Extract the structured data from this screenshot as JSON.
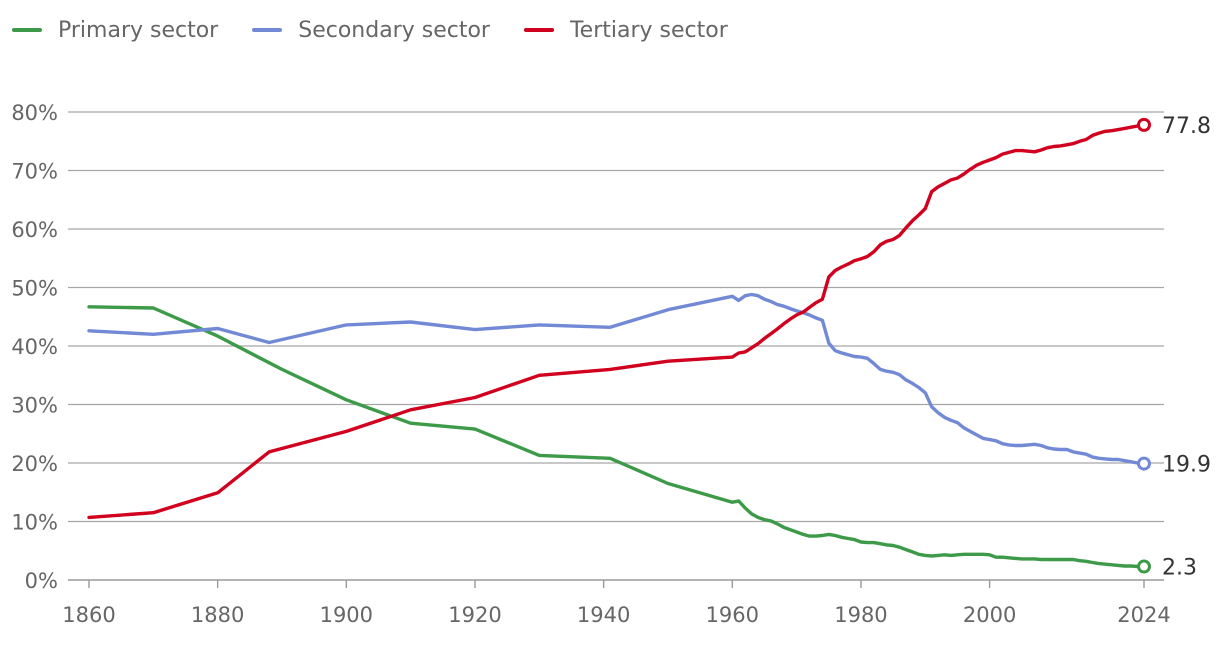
{
  "chart_data": {
    "type": "line",
    "title": "",
    "xlabel": "",
    "ylabel": "",
    "xlim": [
      1860,
      2024
    ],
    "ylim": [
      0,
      80
    ],
    "y_ticks": [
      {
        "value": 0,
        "label": "0%"
      },
      {
        "value": 10,
        "label": "10%"
      },
      {
        "value": 20,
        "label": "20%"
      },
      {
        "value": 30,
        "label": "30%"
      },
      {
        "value": 40,
        "label": "40%"
      },
      {
        "value": 50,
        "label": "50%"
      },
      {
        "value": 60,
        "label": "60%"
      },
      {
        "value": 70,
        "label": "70%"
      },
      {
        "value": 80,
        "label": "80%"
      }
    ],
    "x_ticks": [
      {
        "value": 1860,
        "label": "1860"
      },
      {
        "value": 1880,
        "label": "1880"
      },
      {
        "value": 1900,
        "label": "1900"
      },
      {
        "value": 1920,
        "label": "1920"
      },
      {
        "value": 1940,
        "label": "1940"
      },
      {
        "value": 1960,
        "label": "1960"
      },
      {
        "value": 1980,
        "label": "1980"
      },
      {
        "value": 2000,
        "label": "2000"
      },
      {
        "value": 2024,
        "label": "2024"
      }
    ],
    "legend_position": "top-left",
    "series": [
      {
        "key": "primary",
        "name": "Primary sector",
        "color": "#3d9a48",
        "end_label": "2.3",
        "points": [
          [
            1860,
            46.7
          ],
          [
            1870,
            46.5
          ],
          [
            1880,
            41.7
          ],
          [
            1890,
            36.0
          ],
          [
            1900,
            30.8
          ],
          [
            1910,
            26.8
          ],
          [
            1920,
            25.8
          ],
          [
            1930,
            21.3
          ],
          [
            1941,
            20.8
          ],
          [
            1950,
            16.5
          ],
          [
            1960,
            13.3
          ],
          [
            1961,
            13.5
          ],
          [
            1962,
            12.3
          ],
          [
            1963,
            11.3
          ],
          [
            1964,
            10.7
          ],
          [
            1965,
            10.3
          ],
          [
            1966,
            10.1
          ],
          [
            1967,
            9.6
          ],
          [
            1968,
            9.0
          ],
          [
            1969,
            8.6
          ],
          [
            1970,
            8.2
          ],
          [
            1971,
            7.8
          ],
          [
            1972,
            7.5
          ],
          [
            1973,
            7.5
          ],
          [
            1974,
            7.6
          ],
          [
            1975,
            7.8
          ],
          [
            1976,
            7.6
          ],
          [
            1977,
            7.3
          ],
          [
            1978,
            7.1
          ],
          [
            1979,
            6.9
          ],
          [
            1980,
            6.5
          ],
          [
            1981,
            6.4
          ],
          [
            1982,
            6.4
          ],
          [
            1983,
            6.2
          ],
          [
            1984,
            6.0
          ],
          [
            1985,
            5.9
          ],
          [
            1986,
            5.6
          ],
          [
            1987,
            5.2
          ],
          [
            1988,
            4.8
          ],
          [
            1989,
            4.4
          ],
          [
            1990,
            4.2
          ],
          [
            1991,
            4.1
          ],
          [
            1992,
            4.2
          ],
          [
            1993,
            4.3
          ],
          [
            1994,
            4.2
          ],
          [
            1995,
            4.3
          ],
          [
            1996,
            4.4
          ],
          [
            1997,
            4.4
          ],
          [
            1998,
            4.4
          ],
          [
            1999,
            4.4
          ],
          [
            2000,
            4.3
          ],
          [
            2001,
            3.9
          ],
          [
            2002,
            3.9
          ],
          [
            2003,
            3.8
          ],
          [
            2004,
            3.7
          ],
          [
            2005,
            3.6
          ],
          [
            2006,
            3.6
          ],
          [
            2007,
            3.6
          ],
          [
            2008,
            3.5
          ],
          [
            2009,
            3.5
          ],
          [
            2010,
            3.5
          ],
          [
            2011,
            3.5
          ],
          [
            2012,
            3.5
          ],
          [
            2013,
            3.5
          ],
          [
            2014,
            3.3
          ],
          [
            2015,
            3.2
          ],
          [
            2016,
            3.0
          ],
          [
            2017,
            2.8
          ],
          [
            2018,
            2.7
          ],
          [
            2019,
            2.6
          ],
          [
            2020,
            2.5
          ],
          [
            2021,
            2.4
          ],
          [
            2022,
            2.4
          ],
          [
            2023,
            2.3
          ],
          [
            2024,
            2.3
          ]
        ]
      },
      {
        "key": "secondary",
        "name": "Secondary sector",
        "color": "#7289d6",
        "end_label": "19.9",
        "points": [
          [
            1860,
            42.6
          ],
          [
            1870,
            42.0
          ],
          [
            1880,
            43.0
          ],
          [
            1888,
            40.6
          ],
          [
            1900,
            43.6
          ],
          [
            1910,
            44.1
          ],
          [
            1920,
            42.8
          ],
          [
            1930,
            43.6
          ],
          [
            1941,
            43.2
          ],
          [
            1950,
            46.2
          ],
          [
            1960,
            48.5
          ],
          [
            1961,
            47.8
          ],
          [
            1962,
            48.6
          ],
          [
            1963,
            48.8
          ],
          [
            1964,
            48.6
          ],
          [
            1965,
            48.0
          ],
          [
            1966,
            47.6
          ],
          [
            1967,
            47.1
          ],
          [
            1968,
            46.8
          ],
          [
            1969,
            46.4
          ],
          [
            1970,
            46.0
          ],
          [
            1971,
            45.7
          ],
          [
            1972,
            45.3
          ],
          [
            1973,
            44.8
          ],
          [
            1974,
            44.4
          ],
          [
            1975,
            40.5
          ],
          [
            1976,
            39.2
          ],
          [
            1977,
            38.8
          ],
          [
            1978,
            38.5
          ],
          [
            1979,
            38.2
          ],
          [
            1980,
            38.1
          ],
          [
            1981,
            37.9
          ],
          [
            1982,
            37.0
          ],
          [
            1983,
            36.0
          ],
          [
            1984,
            35.7
          ],
          [
            1985,
            35.5
          ],
          [
            1986,
            35.1
          ],
          [
            1987,
            34.2
          ],
          [
            1988,
            33.6
          ],
          [
            1989,
            32.9
          ],
          [
            1990,
            32.0
          ],
          [
            1991,
            29.6
          ],
          [
            1992,
            28.6
          ],
          [
            1993,
            27.8
          ],
          [
            1994,
            27.3
          ],
          [
            1995,
            26.9
          ],
          [
            1996,
            26.0
          ],
          [
            1997,
            25.4
          ],
          [
            1998,
            24.8
          ],
          [
            1999,
            24.2
          ],
          [
            2000,
            24.0
          ],
          [
            2001,
            23.8
          ],
          [
            2002,
            23.3
          ],
          [
            2003,
            23.1
          ],
          [
            2004,
            23.0
          ],
          [
            2005,
            23.0
          ],
          [
            2006,
            23.1
          ],
          [
            2007,
            23.2
          ],
          [
            2008,
            23.0
          ],
          [
            2009,
            22.6
          ],
          [
            2010,
            22.4
          ],
          [
            2011,
            22.3
          ],
          [
            2012,
            22.3
          ],
          [
            2013,
            21.9
          ],
          [
            2014,
            21.7
          ],
          [
            2015,
            21.5
          ],
          [
            2016,
            21.0
          ],
          [
            2017,
            20.8
          ],
          [
            2018,
            20.7
          ],
          [
            2019,
            20.6
          ],
          [
            2020,
            20.6
          ],
          [
            2021,
            20.4
          ],
          [
            2022,
            20.2
          ],
          [
            2023,
            20.0
          ],
          [
            2024,
            19.9
          ]
        ]
      },
      {
        "key": "tertiary",
        "name": "Tertiary sector",
        "color": "#d1001f",
        "end_label": "77.8",
        "points": [
          [
            1860,
            10.7
          ],
          [
            1870,
            11.5
          ],
          [
            1880,
            14.9
          ],
          [
            1888,
            21.9
          ],
          [
            1900,
            25.4
          ],
          [
            1910,
            29.1
          ],
          [
            1920,
            31.2
          ],
          [
            1930,
            35.0
          ],
          [
            1941,
            36.0
          ],
          [
            1950,
            37.4
          ],
          [
            1960,
            38.1
          ],
          [
            1961,
            38.8
          ],
          [
            1962,
            39.0
          ],
          [
            1963,
            39.7
          ],
          [
            1964,
            40.4
          ],
          [
            1965,
            41.3
          ],
          [
            1966,
            42.1
          ],
          [
            1967,
            42.9
          ],
          [
            1968,
            43.8
          ],
          [
            1969,
            44.6
          ],
          [
            1970,
            45.3
          ],
          [
            1971,
            45.8
          ],
          [
            1972,
            46.6
          ],
          [
            1973,
            47.4
          ],
          [
            1974,
            48.0
          ],
          [
            1975,
            51.8
          ],
          [
            1976,
            52.9
          ],
          [
            1977,
            53.5
          ],
          [
            1978,
            54.0
          ],
          [
            1979,
            54.6
          ],
          [
            1980,
            54.9
          ],
          [
            1981,
            55.3
          ],
          [
            1982,
            56.1
          ],
          [
            1983,
            57.3
          ],
          [
            1984,
            57.9
          ],
          [
            1985,
            58.2
          ],
          [
            1986,
            58.9
          ],
          [
            1987,
            60.2
          ],
          [
            1988,
            61.4
          ],
          [
            1989,
            62.4
          ],
          [
            1990,
            63.5
          ],
          [
            1991,
            66.4
          ],
          [
            1992,
            67.2
          ],
          [
            1993,
            67.8
          ],
          [
            1994,
            68.4
          ],
          [
            1995,
            68.7
          ],
          [
            1996,
            69.4
          ],
          [
            1997,
            70.2
          ],
          [
            1998,
            70.9
          ],
          [
            1999,
            71.4
          ],
          [
            2000,
            71.8
          ],
          [
            2001,
            72.2
          ],
          [
            2002,
            72.8
          ],
          [
            2003,
            73.1
          ],
          [
            2004,
            73.4
          ],
          [
            2005,
            73.4
          ],
          [
            2006,
            73.3
          ],
          [
            2007,
            73.2
          ],
          [
            2008,
            73.5
          ],
          [
            2009,
            73.9
          ],
          [
            2010,
            74.1
          ],
          [
            2011,
            74.2
          ],
          [
            2012,
            74.4
          ],
          [
            2013,
            74.6
          ],
          [
            2014,
            75.0
          ],
          [
            2015,
            75.3
          ],
          [
            2016,
            76.0
          ],
          [
            2017,
            76.4
          ],
          [
            2018,
            76.7
          ],
          [
            2019,
            76.8
          ],
          [
            2020,
            77.0
          ],
          [
            2021,
            77.2
          ],
          [
            2022,
            77.4
          ],
          [
            2023,
            77.6
          ],
          [
            2024,
            77.8
          ]
        ]
      }
    ]
  }
}
